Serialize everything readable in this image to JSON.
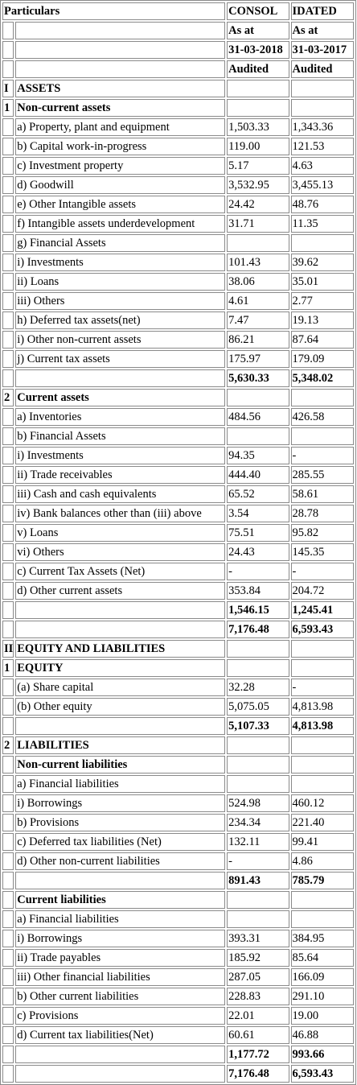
{
  "header": {
    "particulars": "Particulars",
    "col1_title": "CONSOL",
    "col2_title": "IDATED",
    "as_at": "As at",
    "date1": "31-03-2018",
    "date2": "31-03-2017",
    "audited": "Audited"
  },
  "rows": [
    {
      "idx": "I",
      "label": "ASSETS",
      "v1": "",
      "v2": "",
      "bold": true
    },
    {
      "idx": "1",
      "label": "Non-current assets",
      "v1": "",
      "v2": "",
      "bold": true
    },
    {
      "idx": "",
      "label": "a) Property, plant and equipment",
      "v1": "1,503.33",
      "v2": "1,343.36"
    },
    {
      "idx": "",
      "label": "b) Capital work-in-progress",
      "v1": "119.00",
      "v2": "121.53"
    },
    {
      "idx": "",
      "label": "c) Investment property",
      "v1": "5.17",
      "v2": "4.63"
    },
    {
      "idx": "",
      "label": "d) Goodwill",
      "v1": "3,532.95",
      "v2": "3,455.13"
    },
    {
      "idx": "",
      "label": "e) Other Intangible assets",
      "v1": "24.42",
      "v2": "48.76"
    },
    {
      "idx": "",
      "label": "f) Intangible assets underdevelopment",
      "v1": "31.71",
      "v2": "11.35"
    },
    {
      "idx": "",
      "label": "g) Financial Assets",
      "v1": "",
      "v2": ""
    },
    {
      "idx": "",
      "label": "i) Investments",
      "v1": "101.43",
      "v2": "39.62"
    },
    {
      "idx": "",
      "label": "ii) Loans",
      "v1": "38.06",
      "v2": "35.01"
    },
    {
      "idx": "",
      "label": "iii) Others",
      "v1": "4.61",
      "v2": "2.77"
    },
    {
      "idx": "",
      "label": "h) Deferred tax assets(net)",
      "v1": "7.47",
      "v2": "19.13"
    },
    {
      "idx": "",
      "label": "i) Other non-current assets",
      "v1": "86.21",
      "v2": "87.64"
    },
    {
      "idx": "",
      "label": "j) Current tax assets",
      "v1": "175.97",
      "v2": "179.09"
    },
    {
      "idx": "",
      "label": "",
      "v1": "5,630.33",
      "v2": "5,348.02",
      "boldv": true
    },
    {
      "idx": "2",
      "label": "Current assets",
      "v1": "",
      "v2": "",
      "bold": true
    },
    {
      "idx": "",
      "label": "a) Inventories",
      "v1": "484.56",
      "v2": "426.58"
    },
    {
      "idx": "",
      "label": "b) Financial Assets",
      "v1": "",
      "v2": ""
    },
    {
      "idx": "",
      "label": "i) Investments",
      "v1": "94.35",
      "v2": "-"
    },
    {
      "idx": "",
      "label": "ii) Trade receivables",
      "v1": "444.40",
      "v2": "285.55"
    },
    {
      "idx": "",
      "label": "iii) Cash and cash equivalents",
      "v1": "65.52",
      "v2": "58.61"
    },
    {
      "idx": "",
      "label": "iv) Bank balances other than (iii) above",
      "v1": "3.54",
      "v2": "28.78"
    },
    {
      "idx": "",
      "label": "v) Loans",
      "v1": "75.51",
      "v2": "95.82"
    },
    {
      "idx": "",
      "label": "vi) Others",
      "v1": "24.43",
      "v2": "145.35"
    },
    {
      "idx": "",
      "label": "c) Current Tax Assets (Net)",
      "v1": "-",
      "v2": "-"
    },
    {
      "idx": "",
      "label": "d) Other current assets",
      "v1": "353.84",
      "v2": "204.72"
    },
    {
      "idx": "",
      "label": "",
      "v1": "1,546.15",
      "v2": "1,245.41",
      "boldv": true
    },
    {
      "idx": "",
      "label": "",
      "v1": "7,176.48",
      "v2": "6,593.43",
      "boldv": true
    },
    {
      "idx": "II",
      "label": "EQUITY AND LIABILITIES",
      "v1": "",
      "v2": "",
      "bold": true
    },
    {
      "idx": "1",
      "label": "EQUITY",
      "v1": "",
      "v2": "",
      "bold": true
    },
    {
      "idx": "",
      "label": "(a) Share capital",
      "v1": "32.28",
      "v2": "-"
    },
    {
      "idx": "",
      "label": "(b) Other equity",
      "v1": "5,075.05",
      "v2": "4,813.98"
    },
    {
      "idx": "",
      "label": "",
      "v1": "5,107.33",
      "v2": "4,813.98",
      "boldv": true
    },
    {
      "idx": "2",
      "label": "LIABILITIES",
      "v1": "",
      "v2": "",
      "bold": true
    },
    {
      "idx": "",
      "label": "Non-current liabilities",
      "v1": "",
      "v2": "",
      "bold": true
    },
    {
      "idx": "",
      "label": "a) Financial liabilities",
      "v1": "",
      "v2": ""
    },
    {
      "idx": "",
      "label": "i) Borrowings",
      "v1": "524.98",
      "v2": "460.12"
    },
    {
      "idx": "",
      "label": "b) Provisions",
      "v1": "234.34",
      "v2": "221.40"
    },
    {
      "idx": "",
      "label": "c) Deferred tax liabilities (Net)",
      "v1": "132.11",
      "v2": "99.41"
    },
    {
      "idx": "",
      "label": "d) Other non-current liabilities",
      "v1": "-",
      "v2": "4.86"
    },
    {
      "idx": "",
      "label": "",
      "v1": "891.43",
      "v2": "785.79",
      "boldv": true
    },
    {
      "idx": "",
      "label": "Current liabilities",
      "v1": "",
      "v2": "",
      "bold": true
    },
    {
      "idx": "",
      "label": "a) Financial liabilities",
      "v1": "",
      "v2": ""
    },
    {
      "idx": "",
      "label": "i) Borrowings",
      "v1": "393.31",
      "v2": "384.95"
    },
    {
      "idx": "",
      "label": "ii) Trade payables",
      "v1": "185.92",
      "v2": "85.64"
    },
    {
      "idx": "",
      "label": "iii) Other financial liabilities",
      "v1": "287.05",
      "v2": "166.09"
    },
    {
      "idx": "",
      "label": "b) Other current liabilities",
      "v1": "228.83",
      "v2": "291.10"
    },
    {
      "idx": "",
      "label": "c) Provisions",
      "v1": "22.01",
      "v2": "19.00"
    },
    {
      "idx": "",
      "label": "d) Current tax liabilities(Net)",
      "v1": "60.61",
      "v2": "46.88"
    },
    {
      "idx": "",
      "label": "",
      "v1": "1,177.72",
      "v2": "993.66",
      "boldv": true
    },
    {
      "idx": "",
      "label": "",
      "v1": "7,176.48",
      "v2": "6,593.43",
      "boldv": true
    }
  ]
}
